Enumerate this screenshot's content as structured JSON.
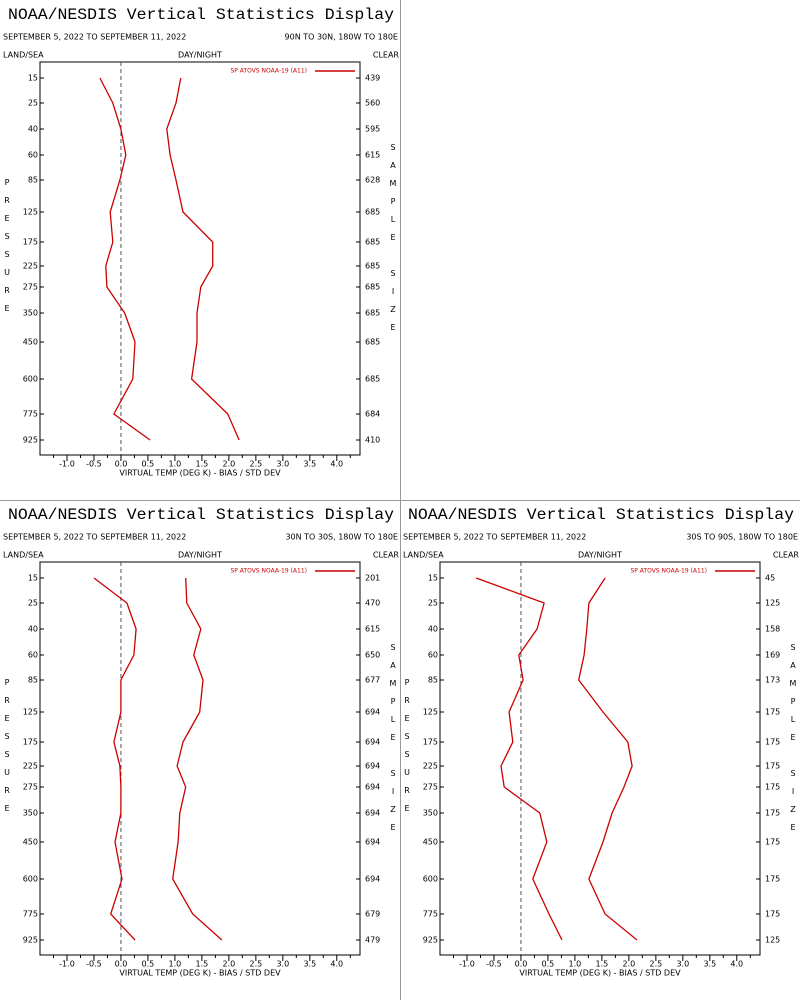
{
  "chart_data": [
    {
      "type": "line",
      "title": "NOAA/NESDIS Vertical Statistics Display",
      "date_range": "SEPTEMBER 5, 2022 TO SEPTEMBER 11, 2022",
      "region": "90N TO 30N, 180W TO 180E",
      "land_sea": "LAND/SEA",
      "day_night": "DAY/NIGHT",
      "clear": "CLEAR",
      "x_label": "VIRTUAL TEMP (DEG K) - BIAS / STD DEV",
      "pressure_label": "PRESSURE",
      "sample_size_label": "SAMPLE SIZE",
      "legend": "SP ATOVS NOAA-19 (A11)",
      "categories": [
        "15",
        "25",
        "40",
        "60",
        "85",
        "125",
        "175",
        "225",
        "275",
        "350",
        "450",
        "600",
        "775",
        "925"
      ],
      "sample_sizes": [
        439,
        560,
        595,
        615,
        628,
        685,
        685,
        685,
        685,
        685,
        685,
        685,
        684,
        410
      ],
      "series": [
        {
          "color": "#cc0000",
          "values": [
            -0.39,
            -0.15,
            0.0,
            0.09,
            -0.02,
            -0.2,
            -0.15,
            -0.28,
            -0.26,
            0.07,
            0.26,
            0.22,
            -0.13,
            0.54
          ]
        },
        {
          "color": "#cc0000",
          "values": [
            1.11,
            1.02,
            0.85,
            0.91,
            1.02,
            1.15,
            1.7,
            1.7,
            1.48,
            1.41,
            1.41,
            1.31,
            1.98,
            2.19
          ]
        }
      ],
      "xlim": [
        -1.5,
        4.43
      ],
      "xticks": [
        {
          "value": -1,
          "label": "-1.0"
        },
        -0.5,
        {
          "value": 0,
          "label": "0.0"
        },
        0.5,
        {
          "value": 1,
          "label": "1.0"
        },
        1.5,
        {
          "value": 2,
          "label": "2.0"
        },
        2.5,
        {
          "value": 3,
          "label": "3.0"
        },
        3.5,
        {
          "value": 4,
          "label": "4.0"
        }
      ],
      "xminorticks": [
        -1.25,
        -0.75,
        -0.25,
        0.25,
        0.75,
        1.25,
        1.75,
        2.25,
        2.75,
        3.25,
        3.75,
        4.25
      ]
    },
    {
      "type": "line",
      "title": "NOAA/NESDIS Vertical Statistics Display",
      "date_range": "SEPTEMBER 5, 2022 TO SEPTEMBER 11, 2022",
      "region": "30N TO 30S, 180W TO 180E",
      "land_sea": "LAND/SEA",
      "day_night": "DAY/NIGHT",
      "clear": "CLEAR",
      "x_label": "VIRTUAL TEMP (DEG K) - BIAS / STD DEV",
      "pressure_label": "PRESSURE",
      "sample_size_label": "SAMPLE SIZE",
      "legend": "SP ATOVS NOAA-19 (A11)",
      "categories": [
        "15",
        "25",
        "40",
        "60",
        "85",
        "125",
        "175",
        "225",
        "275",
        "350",
        "450",
        "600",
        "775",
        "925"
      ],
      "sample_sizes": [
        201,
        470,
        615,
        650,
        677,
        694,
        694,
        694,
        694,
        694,
        694,
        694,
        679,
        479
      ],
      "series": [
        {
          "color": "#cc0000",
          "values": [
            -0.5,
            0.11,
            0.28,
            0.24,
            0.0,
            0.0,
            -0.13,
            -0.02,
            0.0,
            0.0,
            -0.11,
            0.02,
            -0.19,
            0.26
          ]
        },
        {
          "color": "#cc0000",
          "values": [
            1.2,
            1.22,
            1.48,
            1.35,
            1.52,
            1.46,
            1.15,
            1.04,
            1.2,
            1.09,
            1.06,
            0.96,
            1.33,
            1.87
          ]
        }
      ],
      "xlim": [
        -1.5,
        4.43
      ],
      "xticks": [
        {
          "value": -1,
          "label": "-1.0"
        },
        -0.5,
        {
          "value": 0,
          "label": "0.0"
        },
        0.5,
        {
          "value": 1,
          "label": "1.0"
        },
        1.5,
        {
          "value": 2,
          "label": "2.0"
        },
        2.5,
        {
          "value": 3,
          "label": "3.0"
        },
        3.5,
        {
          "value": 4,
          "label": "4.0"
        }
      ],
      "xminorticks": [
        -1.25,
        -0.75,
        -0.25,
        0.25,
        0.75,
        1.25,
        1.75,
        2.25,
        2.75,
        3.25,
        3.75,
        4.25
      ]
    },
    {
      "type": "line",
      "title": "NOAA/NESDIS Vertical Statistics Display",
      "date_range": "SEPTEMBER 5, 2022 TO SEPTEMBER 11, 2022",
      "region": "30S TO 90S, 180W TO 180E",
      "land_sea": "LAND/SEA",
      "day_night": "DAY/NIGHT",
      "clear": "CLEAR",
      "x_label": "VIRTUAL TEMP (DEG K) - BIAS / STD DEV",
      "pressure_label": "PRESSURE",
      "sample_size_label": "SAMPLE SIZE",
      "legend": "SP ATOVS NOAA-19 (A11)",
      "categories": [
        "15",
        "25",
        "40",
        "60",
        "85",
        "125",
        "175",
        "225",
        "275",
        "350",
        "450",
        "600",
        "775",
        "925"
      ],
      "sample_sizes": [
        45,
        125,
        158,
        169,
        173,
        175,
        175,
        175,
        175,
        175,
        175,
        175,
        175,
        125
      ],
      "series": [
        {
          "color": "#cc0000",
          "values": [
            -0.83,
            0.43,
            0.3,
            -0.04,
            0.04,
            -0.22,
            -0.15,
            -0.37,
            -0.31,
            0.35,
            0.48,
            0.22,
            0.52,
            0.76
          ]
        },
        {
          "color": "#cc0000",
          "values": [
            1.56,
            1.26,
            1.22,
            1.17,
            1.07,
            1.52,
            1.98,
            2.06,
            1.91,
            1.69,
            1.52,
            1.26,
            1.56,
            2.15
          ]
        }
      ],
      "xlim": [
        -1.5,
        4.43
      ],
      "xticks": [
        {
          "value": -1,
          "label": "-1.0"
        },
        -0.5,
        {
          "value": 0,
          "label": "0.0"
        },
        0.5,
        {
          "value": 1,
          "label": "1.0"
        },
        1.5,
        {
          "value": 2,
          "label": "2.0"
        },
        2.5,
        {
          "value": 3,
          "label": "3.0"
        },
        3.5,
        {
          "value": 4,
          "label": "4.0"
        }
      ],
      "xminorticks": [
        -1.25,
        -0.75,
        -0.25,
        0.25,
        0.75,
        1.25,
        1.75,
        2.25,
        2.75,
        3.25,
        3.75,
        4.25
      ]
    }
  ]
}
